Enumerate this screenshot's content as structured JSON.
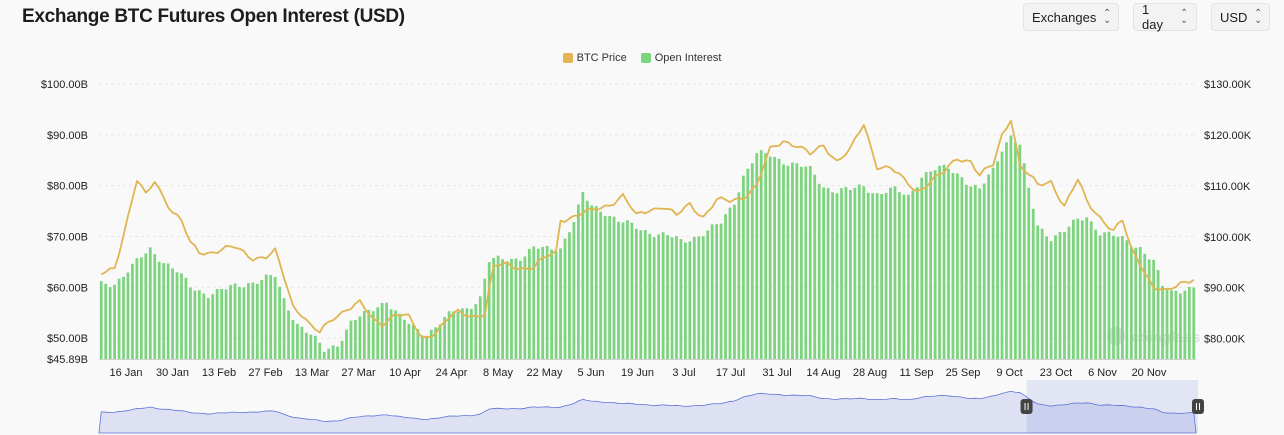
{
  "header": {
    "title": "Exchange BTC Futures Open Interest (USD)",
    "controls": [
      {
        "label": "Exchanges"
      },
      {
        "label": "1 day"
      },
      {
        "label": "USD"
      }
    ]
  },
  "colors": {
    "price": "#e0b552",
    "oi": "#7dd47f",
    "navigator": "#5c73d6",
    "grid": "#e8e8e8"
  },
  "watermark": "coinglass",
  "chart_data": {
    "type": "bar",
    "title": "Exchange BTC Futures Open Interest (USD)",
    "legend": {
      "position": "top-center",
      "entries": [
        "BTC Price",
        "Open Interest"
      ]
    },
    "grid": true,
    "x_ticks": [
      "16 Jan",
      "30 Jan",
      "13 Feb",
      "27 Feb",
      "13 Mar",
      "27 Mar",
      "10 Apr",
      "24 Apr",
      "8 May",
      "22 May",
      "5 Jun",
      "19 Jun",
      "3 Jul",
      "17 Jul",
      "31 Jul",
      "14 Aug",
      "28 Aug",
      "11 Sep",
      "25 Sep",
      "9 Oct",
      "23 Oct",
      "6 Nov",
      "20 Nov"
    ],
    "y_left": {
      "ticks": [
        "$100.00B",
        "$90.00B",
        "$80.00B",
        "$70.00B",
        "$60.00B",
        "$50.00B",
        "$45.89B"
      ],
      "min_label": "$45.89B",
      "range": [
        45.89,
        100
      ]
    },
    "y_right": {
      "ticks": [
        "$130.00K",
        "$120.00K",
        "$110.00K",
        "$100.00K",
        "$90.00K",
        "$80.00K"
      ],
      "range": [
        76,
        130
      ]
    },
    "series": [
      {
        "name": "Open Interest",
        "type": "bar",
        "unit": "B USD",
        "anchors": [
          [
            0,
            60.5
          ],
          [
            3,
            61
          ],
          [
            7,
            64
          ],
          [
            11,
            67.5
          ],
          [
            13,
            66
          ],
          [
            17,
            63
          ],
          [
            20,
            60
          ],
          [
            24,
            58.8
          ],
          [
            28,
            59.5
          ],
          [
            33,
            61
          ],
          [
            36,
            61.5
          ],
          [
            39,
            62
          ],
          [
            41,
            57.5
          ],
          [
            44,
            53
          ],
          [
            47,
            50.5
          ],
          [
            50,
            47.5
          ],
          [
            53,
            49
          ],
          [
            56,
            53
          ],
          [
            59,
            54.5
          ],
          [
            62,
            56.5
          ],
          [
            64,
            57.5
          ],
          [
            67,
            54
          ],
          [
            70,
            52
          ],
          [
            73,
            51
          ],
          [
            76,
            53
          ],
          [
            79,
            55
          ],
          [
            82,
            56
          ],
          [
            85,
            58
          ],
          [
            87,
            65
          ],
          [
            90,
            65.5
          ],
          [
            94,
            66
          ],
          [
            97,
            67.5
          ],
          [
            100,
            67.5
          ],
          [
            103,
            68
          ],
          [
            106,
            73
          ],
          [
            108,
            78
          ],
          [
            110,
            76
          ],
          [
            113,
            75
          ],
          [
            116,
            73
          ],
          [
            119,
            72
          ],
          [
            123,
            71
          ],
          [
            127,
            70
          ],
          [
            130,
            69
          ],
          [
            133,
            70
          ],
          [
            136,
            71
          ],
          [
            139,
            72.5
          ],
          [
            142,
            77
          ],
          [
            144,
            82
          ],
          [
            147,
            86
          ],
          [
            150,
            86
          ],
          [
            153,
            85
          ],
          [
            156,
            84
          ],
          [
            159,
            83
          ],
          [
            162,
            80
          ],
          [
            165,
            79
          ],
          [
            168,
            79
          ],
          [
            171,
            80
          ],
          [
            174,
            78.5
          ],
          [
            178,
            79
          ],
          [
            181,
            78
          ],
          [
            184,
            82
          ],
          [
            187,
            83
          ],
          [
            190,
            83.5
          ],
          [
            193,
            82
          ],
          [
            195,
            80
          ],
          [
            197,
            79
          ],
          [
            200,
            83
          ],
          [
            202,
            87.5
          ],
          [
            204,
            90
          ],
          [
            206,
            88
          ],
          [
            208,
            79
          ],
          [
            210,
            72
          ],
          [
            213,
            70
          ],
          [
            216,
            71
          ],
          [
            219,
            73
          ],
          [
            221,
            74
          ],
          [
            224,
            71
          ],
          [
            227,
            70
          ],
          [
            230,
            69
          ],
          [
            233,
            68
          ],
          [
            236,
            65
          ],
          [
            238,
            60
          ],
          [
            240,
            59
          ],
          [
            243,
            60
          ],
          [
            245,
            60
          ]
        ]
      },
      {
        "name": "BTC Price",
        "type": "line",
        "unit": "K USD",
        "anchors": [
          [
            0,
            92.5
          ],
          [
            3,
            94
          ],
          [
            6,
            104
          ],
          [
            8,
            111
          ],
          [
            10,
            108
          ],
          [
            12,
            111
          ],
          [
            14,
            108
          ],
          [
            16,
            105
          ],
          [
            18,
            103
          ],
          [
            20,
            98.5
          ],
          [
            22,
            97
          ],
          [
            24,
            97
          ],
          [
            27,
            97.5
          ],
          [
            30,
            97.8
          ],
          [
            34,
            96
          ],
          [
            37,
            96
          ],
          [
            39,
            97
          ],
          [
            41,
            92
          ],
          [
            43,
            86.5
          ],
          [
            45,
            85
          ],
          [
            47,
            82.5
          ],
          [
            49,
            81
          ],
          [
            52,
            84
          ],
          [
            55,
            86
          ],
          [
            58,
            87
          ],
          [
            61,
            83.5
          ],
          [
            63,
            83
          ],
          [
            66,
            85
          ],
          [
            69,
            84
          ],
          [
            72,
            80
          ],
          [
            75,
            81.5
          ],
          [
            78,
            84
          ],
          [
            80,
            85
          ],
          [
            83,
            84.5
          ],
          [
            86,
            85
          ],
          [
            88,
            94
          ],
          [
            91,
            94.5
          ],
          [
            94,
            94
          ],
          [
            97,
            94
          ],
          [
            100,
            96
          ],
          [
            102,
            97
          ],
          [
            103,
            103.5
          ],
          [
            106,
            104
          ],
          [
            110,
            105
          ],
          [
            114,
            106.5
          ],
          [
            117,
            108
          ],
          [
            120,
            104
          ],
          [
            123,
            105.5
          ],
          [
            126,
            106
          ],
          [
            129,
            104
          ],
          [
            132,
            106.5
          ],
          [
            135,
            104
          ],
          [
            138,
            107
          ],
          [
            141,
            107
          ],
          [
            144,
            108
          ],
          [
            147,
            110
          ],
          [
            150,
            117
          ],
          [
            153,
            119
          ],
          [
            156,
            118
          ],
          [
            159,
            116
          ],
          [
            162,
            118
          ],
          [
            165,
            115
          ],
          [
            168,
            117
          ],
          [
            171,
            122
          ],
          [
            174,
            114
          ],
          [
            177,
            113.5
          ],
          [
            180,
            111
          ],
          [
            183,
            109
          ],
          [
            186,
            111
          ],
          [
            189,
            112.5
          ],
          [
            192,
            115.5
          ],
          [
            195,
            115
          ],
          [
            197,
            112
          ],
          [
            200,
            114
          ],
          [
            202,
            120
          ],
          [
            204,
            123.5
          ],
          [
            206,
            114
          ],
          [
            208,
            112
          ],
          [
            210,
            110
          ],
          [
            213,
            111
          ],
          [
            216,
            106
          ],
          [
            219,
            111
          ],
          [
            221,
            107
          ],
          [
            224,
            104
          ],
          [
            227,
            101
          ],
          [
            229,
            103
          ],
          [
            231,
            97.5
          ],
          [
            233,
            95
          ],
          [
            236,
            90
          ],
          [
            239,
            89
          ],
          [
            242,
            91
          ],
          [
            245,
            92
          ]
        ]
      }
    ],
    "navigator": {
      "selected_range": [
        "14 Oct",
        "1 Dec"
      ]
    }
  }
}
